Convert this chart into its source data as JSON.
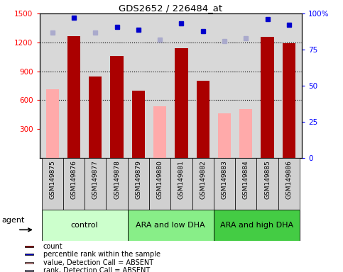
{
  "title": "GDS2652 / 226484_at",
  "samples": [
    "GSM149875",
    "GSM149876",
    "GSM149877",
    "GSM149878",
    "GSM149879",
    "GSM149880",
    "GSM149881",
    "GSM149882",
    "GSM149883",
    "GSM149884",
    "GSM149885",
    "GSM149886"
  ],
  "bar_values": [
    null,
    1265,
    845,
    1060,
    700,
    null,
    1140,
    800,
    null,
    null,
    1255,
    1190
  ],
  "bar_absent_values": [
    715,
    null,
    null,
    null,
    null,
    535,
    null,
    null,
    460,
    510,
    null,
    null
  ],
  "percentile_present": [
    null,
    97,
    null,
    91,
    89,
    null,
    93,
    88,
    null,
    null,
    96,
    92
  ],
  "percentile_absent": [
    87,
    null,
    87,
    null,
    null,
    82,
    null,
    null,
    81,
    83,
    null,
    null
  ],
  "bar_color": "#aa0000",
  "bar_absent_color": "#ffaaaa",
  "dot_present_color": "#0000cc",
  "dot_absent_color": "#aaaacc",
  "ylim_left": [
    0,
    1500
  ],
  "ylim_right": [
    0,
    100
  ],
  "yticks_left": [
    300,
    600,
    900,
    1200,
    1500
  ],
  "yticks_right": [
    0,
    25,
    50,
    75,
    100
  ],
  "groups": [
    {
      "label": "control",
      "start": 0,
      "end": 3,
      "color": "#ccffcc"
    },
    {
      "label": "ARA and low DHA",
      "start": 4,
      "end": 7,
      "color": "#88ee88"
    },
    {
      "label": "ARA and high DHA",
      "start": 8,
      "end": 11,
      "color": "#44cc44"
    }
  ],
  "legend_items": [
    {
      "label": "count",
      "color": "#aa0000"
    },
    {
      "label": "percentile rank within the sample",
      "color": "#0000cc"
    },
    {
      "label": "value, Detection Call = ABSENT",
      "color": "#ffaaaa"
    },
    {
      "label": "rank, Detection Call = ABSENT",
      "color": "#aaaacc"
    }
  ],
  "agent_label": "agent",
  "plot_bg_color": "#d8d8d8",
  "tick_bg_color": "#d0d0d0"
}
